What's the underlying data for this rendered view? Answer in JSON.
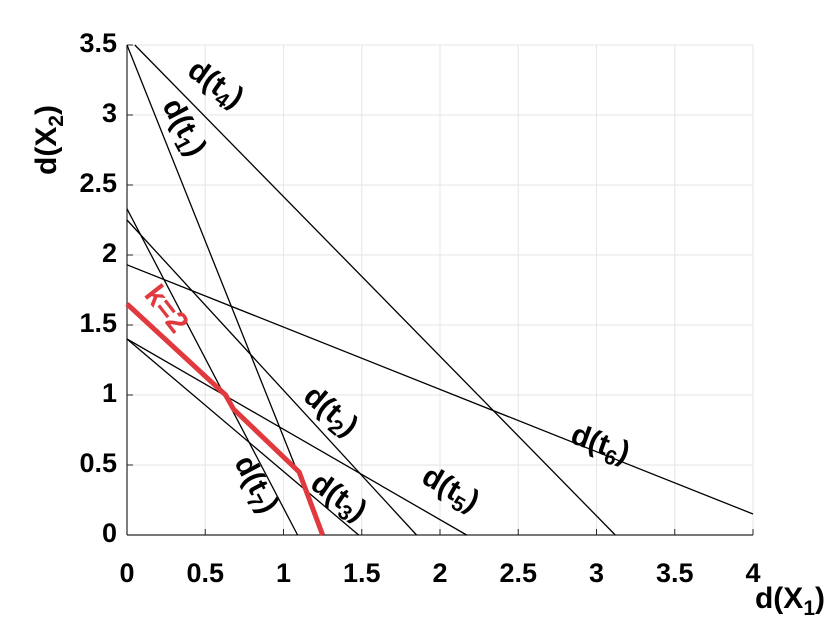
{
  "chart_data": {
    "type": "line",
    "x_label": "d(X1)",
    "y_label": "d(X2)",
    "xlim": [
      0,
      4
    ],
    "ylim": [
      0,
      3.5
    ],
    "xticks": [
      0,
      0.5,
      1,
      1.5,
      2,
      2.5,
      3,
      3.5,
      4
    ],
    "yticks": [
      0,
      0.5,
      1,
      1.5,
      2,
      2.5,
      3,
      3.5
    ],
    "grid": true,
    "series": [
      {
        "name": "d(t4)",
        "color": "#000000",
        "x": [
          0.05,
          3.12
        ],
        "values": [
          3.5,
          0
        ]
      },
      {
        "name": "d(t1)",
        "color": "#000000",
        "x": [
          0,
          1.25
        ],
        "values": [
          3.5,
          0
        ]
      },
      {
        "name": "d(t2)",
        "color": "#000000",
        "x": [
          0,
          1.85
        ],
        "values": [
          2.25,
          0
        ]
      },
      {
        "name": "d(t7)",
        "color": "#000000",
        "x": [
          0,
          1.09
        ],
        "values": [
          2.33,
          0
        ]
      },
      {
        "name": "d(t3)",
        "color": "#000000",
        "x": [
          0,
          1.48
        ],
        "values": [
          1.4,
          0
        ]
      },
      {
        "name": "d(t5)",
        "color": "#000000",
        "x": [
          0,
          2.17
        ],
        "values": [
          1.4,
          0
        ]
      },
      {
        "name": "d(t6)",
        "color": "#000000",
        "x": [
          0,
          4
        ],
        "values": [
          1.93,
          0.15
        ]
      },
      {
        "name": "k=2",
        "color": "#e0393e",
        "x": [
          0,
          0.63,
          0.68,
          1.1,
          1.25
        ],
        "values": [
          1.65,
          1.0,
          0.9,
          0.45,
          0
        ]
      }
    ]
  }
}
